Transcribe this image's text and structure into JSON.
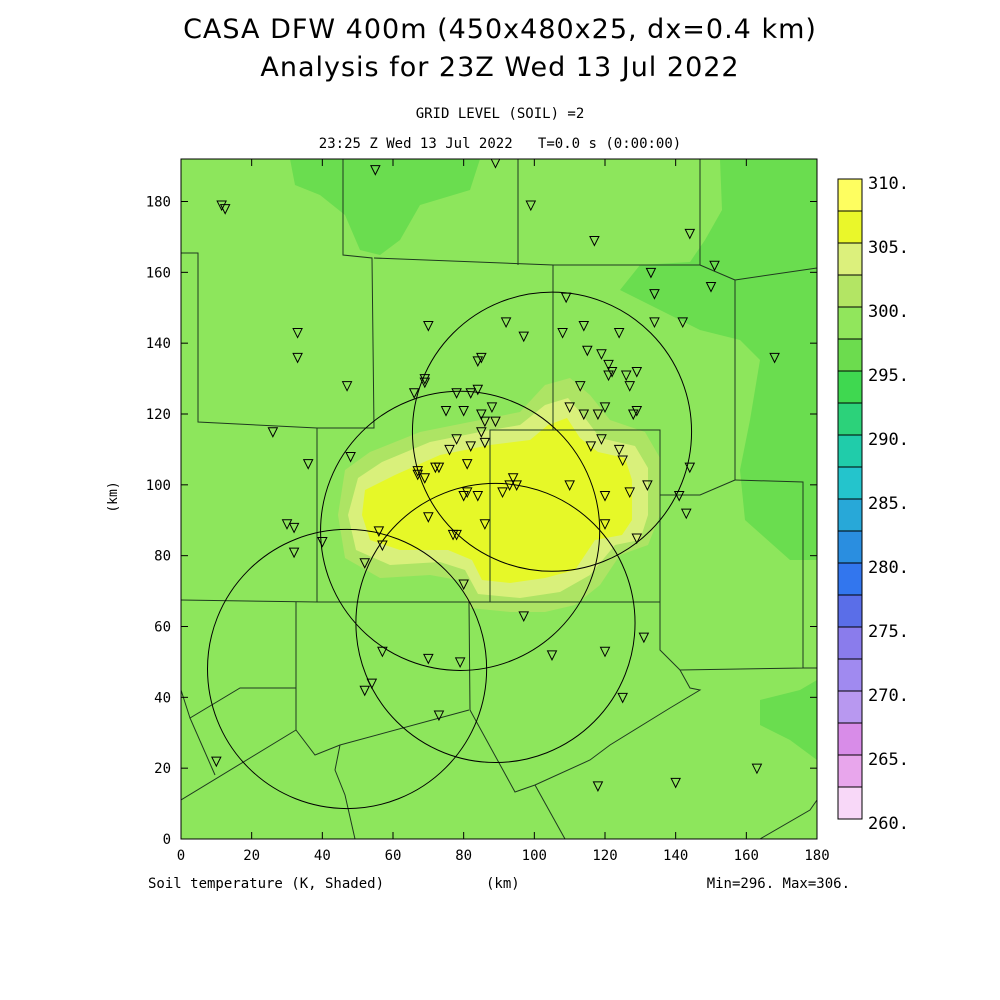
{
  "header": {
    "title_line1": "CASA DFW 400m (450x480x25, dx=0.4 km)",
    "title_line2": "Analysis for 23Z Wed 13 Jul 2022",
    "grid_level": "GRID LEVEL (SOIL) =2",
    "time_line": "23:25 Z Wed 13 Jul 2022   T=0.0 s (0:00:00)"
  },
  "footer": {
    "field_label": "Soil temperature (K, Shaded)",
    "x_unit": "(km)",
    "minmax": "Min=296. Max=306."
  },
  "colors": {
    "background_field": "#8de65c",
    "cooler_field": "#6add4f",
    "warm_band": "#ade464",
    "warmer_band": "#d9f07b",
    "warmest": "#e6f828",
    "lines": "#1a2a1a"
  },
  "map": {
    "x_range_km": [
      0,
      180
    ],
    "y_range_km": [
      0,
      192
    ],
    "x_ticks": [
      0,
      20,
      40,
      60,
      80,
      100,
      120,
      140,
      160,
      180
    ],
    "y_ticks": [
      0,
      20,
      40,
      60,
      80,
      100,
      120,
      140,
      160,
      180
    ],
    "y_label": "(km)",
    "radar_rings_km": [
      {
        "cx": 105,
        "cy": 115,
        "r": 39.5
      },
      {
        "cx": 79,
        "cy": 87,
        "r": 39.5
      },
      {
        "cx": 89,
        "cy": 61,
        "r": 39.5
      },
      {
        "cx": 47,
        "cy": 48,
        "r": 39.5
      }
    ],
    "stations_km": [
      [
        11.5,
        179
      ],
      [
        12.5,
        178
      ],
      [
        55,
        189
      ],
      [
        89,
        191
      ],
      [
        99,
        179
      ],
      [
        117,
        169
      ],
      [
        144,
        171
      ],
      [
        151,
        162
      ],
      [
        150,
        156
      ],
      [
        133,
        160
      ],
      [
        134,
        154
      ],
      [
        134,
        146
      ],
      [
        142,
        146
      ],
      [
        168,
        136
      ],
      [
        33,
        143
      ],
      [
        33,
        136
      ],
      [
        70,
        145
      ],
      [
        47,
        128
      ],
      [
        66,
        126
      ],
      [
        69,
        129
      ],
      [
        69,
        130
      ],
      [
        75,
        121
      ],
      [
        78,
        126
      ],
      [
        82,
        126
      ],
      [
        84,
        127
      ],
      [
        84,
        135
      ],
      [
        85,
        136
      ],
      [
        92,
        146
      ],
      [
        97,
        142
      ],
      [
        109,
        153
      ],
      [
        108,
        143
      ],
      [
        114,
        145
      ],
      [
        115,
        138
      ],
      [
        119,
        137
      ],
      [
        121,
        134
      ],
      [
        121,
        131
      ],
      [
        122,
        132
      ],
      [
        124,
        143
      ],
      [
        126,
        131
      ],
      [
        127,
        128
      ],
      [
        129,
        132
      ],
      [
        128,
        120
      ],
      [
        129,
        121
      ],
      [
        113,
        128
      ],
      [
        110,
        122
      ],
      [
        114,
        120
      ],
      [
        118,
        120
      ],
      [
        120,
        122
      ],
      [
        80,
        121
      ],
      [
        85,
        120
      ],
      [
        86,
        118
      ],
      [
        88,
        122
      ],
      [
        89,
        118
      ],
      [
        85,
        115
      ],
      [
        78,
        113
      ],
      [
        82,
        111
      ],
      [
        76,
        110
      ],
      [
        81,
        106
      ],
      [
        86,
        112
      ],
      [
        116,
        111
      ],
      [
        119,
        113
      ],
      [
        124,
        110
      ],
      [
        125,
        107
      ],
      [
        144,
        105
      ],
      [
        141,
        97
      ],
      [
        143,
        92
      ],
      [
        132,
        100
      ],
      [
        127,
        98
      ],
      [
        120,
        97
      ],
      [
        120,
        89
      ],
      [
        129,
        85
      ],
      [
        110,
        100
      ],
      [
        81,
        98
      ],
      [
        80,
        97
      ],
      [
        84,
        97
      ],
      [
        91,
        98
      ],
      [
        94,
        102
      ],
      [
        95,
        100
      ],
      [
        93,
        100
      ],
      [
        67,
        103
      ],
      [
        67,
        104
      ],
      [
        69,
        102
      ],
      [
        72,
        105
      ],
      [
        73,
        105
      ],
      [
        70,
        91
      ],
      [
        36,
        106
      ],
      [
        48,
        108
      ],
      [
        26,
        115
      ],
      [
        30,
        89
      ],
      [
        32,
        88
      ],
      [
        32,
        81
      ],
      [
        40,
        84
      ],
      [
        52,
        78
      ],
      [
        56,
        87
      ],
      [
        57,
        83
      ],
      [
        77,
        86
      ],
      [
        78,
        86
      ],
      [
        80,
        72
      ],
      [
        86,
        89
      ],
      [
        97,
        63
      ],
      [
        105,
        52
      ],
      [
        120,
        53
      ],
      [
        125,
        40
      ],
      [
        131,
        57
      ],
      [
        118,
        15
      ],
      [
        140,
        16
      ],
      [
        163,
        20
      ],
      [
        73,
        35
      ],
      [
        70,
        51
      ],
      [
        79,
        50
      ],
      [
        57,
        53
      ],
      [
        52,
        42
      ],
      [
        54,
        44
      ],
      [
        10,
        22
      ]
    ]
  }
}
